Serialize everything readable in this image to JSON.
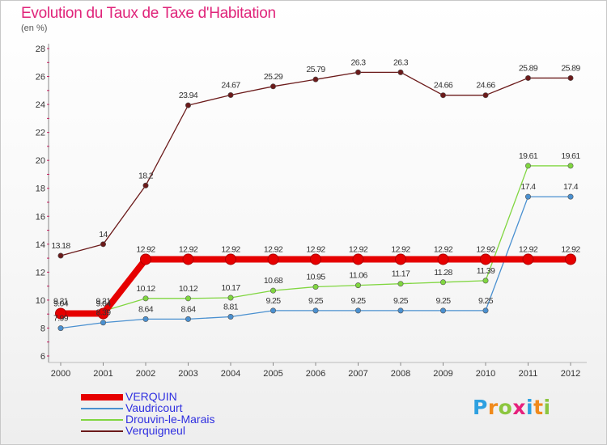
{
  "chart_data": {
    "type": "line",
    "title": "Evolution du Taux de Taxe d'Habitation",
    "unit": "(en %)",
    "x": [
      "2000",
      "2001",
      "2002",
      "2003",
      "2004",
      "2005",
      "2006",
      "2007",
      "2008",
      "2009",
      "2010",
      "2011",
      "2012"
    ],
    "ylim": [
      6,
      28
    ],
    "yticks": [
      6,
      8,
      10,
      12,
      14,
      16,
      18,
      20,
      22,
      24,
      26,
      28
    ],
    "grid": false,
    "legend_position": "bottom-left",
    "series": [
      {
        "name": "VERQUIN",
        "color": "#e60000",
        "values": [
          9.04,
          9.04,
          12.92,
          12.92,
          12.92,
          12.92,
          12.92,
          12.92,
          12.92,
          12.92,
          12.92,
          12.92,
          12.92
        ],
        "labels": [
          "9.04",
          "9.04",
          "12.92",
          "12.92",
          "12.92",
          "12.92",
          "12.92",
          "12.92",
          "12.92",
          "12.92",
          "12.92",
          "12.92",
          "12.92"
        ]
      },
      {
        "name": "Vaudricourt",
        "color": "#4a90d0",
        "values": [
          7.99,
          8.39,
          8.64,
          8.64,
          8.81,
          9.25,
          9.25,
          9.25,
          9.25,
          9.25,
          9.25,
          17.4,
          17.4
        ],
        "labels": [
          "7.99",
          "8.39",
          "8.64",
          "8.64",
          "8.81",
          "9.25",
          "9.25",
          "9.25",
          "9.25",
          "9.25",
          "9.25",
          "17.4",
          "17.4"
        ]
      },
      {
        "name": "Drouvin-le-Marais",
        "color": "#80d640",
        "values": [
          9.21,
          9.21,
          10.12,
          10.12,
          10.17,
          10.68,
          10.95,
          11.06,
          11.17,
          11.28,
          11.39,
          19.61,
          19.61
        ],
        "labels": [
          "9.21",
          "9.21",
          "10.12",
          "10.12",
          "10.17",
          "10.68",
          "10.95",
          "11.06",
          "11.17",
          "11.28",
          "11.39",
          "19.61",
          "19.61"
        ]
      },
      {
        "name": "Verquigneul",
        "color": "#6b1a1a",
        "values": [
          13.18,
          14,
          18.2,
          23.94,
          24.67,
          25.29,
          25.79,
          26.3,
          26.3,
          24.66,
          24.66,
          25.89,
          25.89
        ],
        "labels": [
          "13.18",
          "14",
          "18.2",
          "23.94",
          "24.67",
          "25.29",
          "25.79",
          "26.3",
          "26.3",
          "24.66",
          "24.66",
          "25.89",
          "25.89"
        ]
      }
    ]
  },
  "legend": [
    {
      "label": "VERQUIN",
      "color": "#e60000"
    },
    {
      "label": "Vaudricourt",
      "color": "#4a90d0"
    },
    {
      "label": "Drouvin-le-Marais",
      "color": "#80d640"
    },
    {
      "label": "Verquigneul",
      "color": "#6b1a1a"
    }
  ],
  "logo": {
    "text": "Proxiti",
    "letter_colors": [
      "#2ea0e0",
      "#f08a1c",
      "#8cc63f",
      "#e6207c",
      "#2ea0e0",
      "#f08a1c",
      "#8cc63f"
    ]
  }
}
